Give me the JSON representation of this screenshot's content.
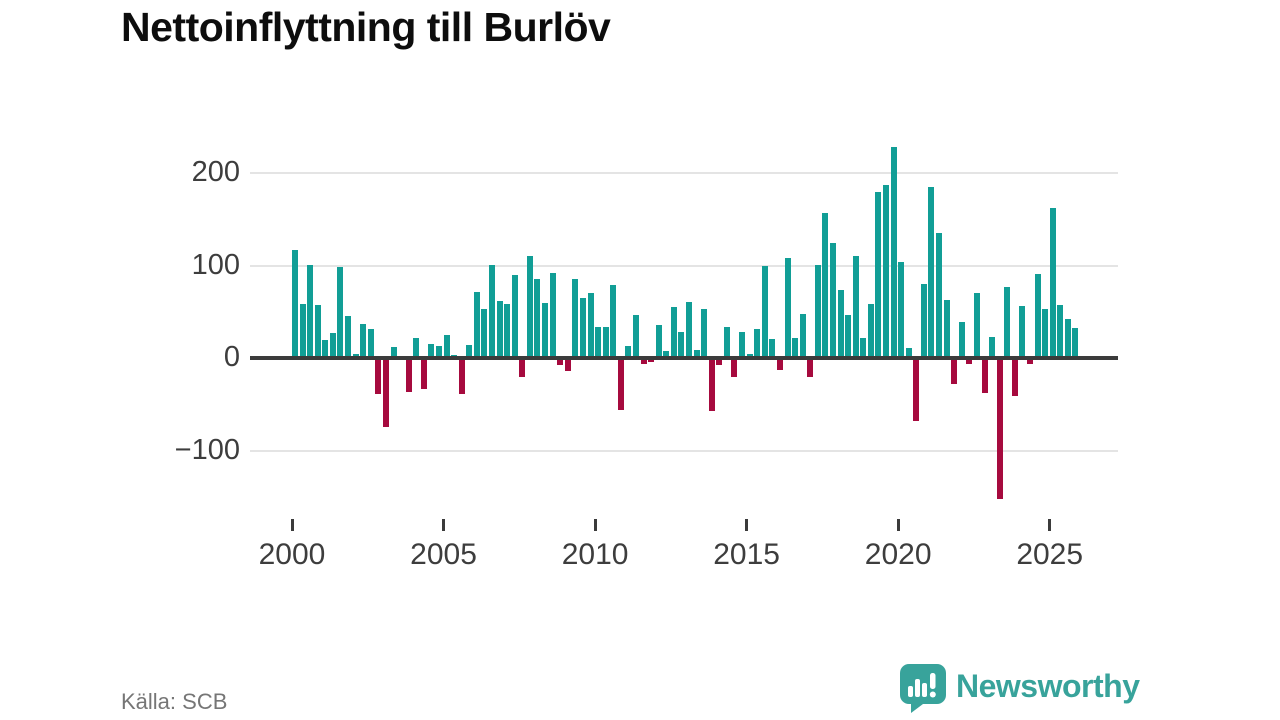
{
  "title": "Nettoinflyttning till Burlöv",
  "source": "Källa: SCB",
  "logo": {
    "text": "Newsworthy",
    "icon": "newsworthy-speech-bubble-barchart-icon"
  },
  "colors": {
    "positive": "#119e96",
    "negative": "#a60a3e",
    "axis": "#3b3b3b",
    "gridline": "#e4e4e4",
    "tick_label": "#3d3d3d",
    "title": "#0d0d0d",
    "source_text": "#767676",
    "logo": "#38a39b",
    "background": "#ffffff"
  },
  "chart_data": {
    "type": "bar",
    "title": "Nettoinflyttning till Burlöv",
    "xlabel": "",
    "ylabel": "",
    "frequency": "quarterly",
    "ylim": [
      -160,
      240
    ],
    "grid": "horizontal",
    "legend": "none",
    "y_ticks": [
      {
        "label": "200",
        "value": 200
      },
      {
        "label": "100",
        "value": 100
      },
      {
        "label": "0",
        "value": 0
      },
      {
        "label": "−100",
        "value": -100
      }
    ],
    "x_ticks": [
      {
        "label": "2000",
        "year": 2000
      },
      {
        "label": "2005",
        "year": 2005
      },
      {
        "label": "2010",
        "year": 2010
      },
      {
        "label": "2015",
        "year": 2015
      },
      {
        "label": "2020",
        "year": 2020
      },
      {
        "label": "2025",
        "year": 2025
      }
    ],
    "series_note": "net migration per quarter, Q1-Q4",
    "years": [
      {
        "year": 2000,
        "values": [
          117,
          58,
          101,
          57
        ]
      },
      {
        "year": 2001,
        "values": [
          20,
          27,
          98,
          45
        ]
      },
      {
        "year": 2002,
        "values": [
          4,
          37,
          31,
          -39
        ]
      },
      {
        "year": 2003,
        "values": [
          -75,
          12,
          2,
          -37
        ]
      },
      {
        "year": 2004,
        "values": [
          22,
          -33,
          15,
          13
        ]
      },
      {
        "year": 2005,
        "values": [
          25,
          3,
          -39,
          14
        ]
      },
      {
        "year": 2006,
        "values": [
          71,
          53,
          101,
          62
        ]
      },
      {
        "year": 2007,
        "values": [
          58,
          90,
          -20,
          110
        ]
      },
      {
        "year": 2008,
        "values": [
          85,
          60,
          92,
          -8
        ]
      },
      {
        "year": 2009,
        "values": [
          -14,
          85,
          65,
          70
        ]
      },
      {
        "year": 2010,
        "values": [
          33,
          34,
          79,
          -56
        ]
      },
      {
        "year": 2011,
        "values": [
          13,
          46,
          -6,
          -4
        ]
      },
      {
        "year": 2012,
        "values": [
          36,
          8,
          55,
          28
        ]
      },
      {
        "year": 2013,
        "values": [
          61,
          9,
          53,
          -57
        ]
      },
      {
        "year": 2014,
        "values": [
          -8,
          33,
          -20,
          28
        ]
      },
      {
        "year": 2015,
        "values": [
          4,
          31,
          100,
          21
        ]
      },
      {
        "year": 2016,
        "values": [
          -13,
          108,
          22,
          48
        ]
      },
      {
        "year": 2017,
        "values": [
          -20,
          101,
          157,
          124
        ]
      },
      {
        "year": 2018,
        "values": [
          73,
          47,
          110,
          22
        ]
      },
      {
        "year": 2019,
        "values": [
          58,
          179,
          187,
          228
        ]
      },
      {
        "year": 2020,
        "values": [
          104,
          11,
          -68,
          80
        ]
      },
      {
        "year": 2021,
        "values": [
          185,
          135,
          63,
          -28
        ]
      },
      {
        "year": 2022,
        "values": [
          39,
          -6,
          70,
          -38
        ]
      },
      {
        "year": 2023,
        "values": [
          23,
          -152,
          77,
          -41
        ]
      },
      {
        "year": 2024,
        "values": [
          56,
          -6,
          91,
          53
        ]
      },
      {
        "year": 2025,
        "values": [
          162,
          57,
          42,
          32
        ]
      }
    ]
  }
}
